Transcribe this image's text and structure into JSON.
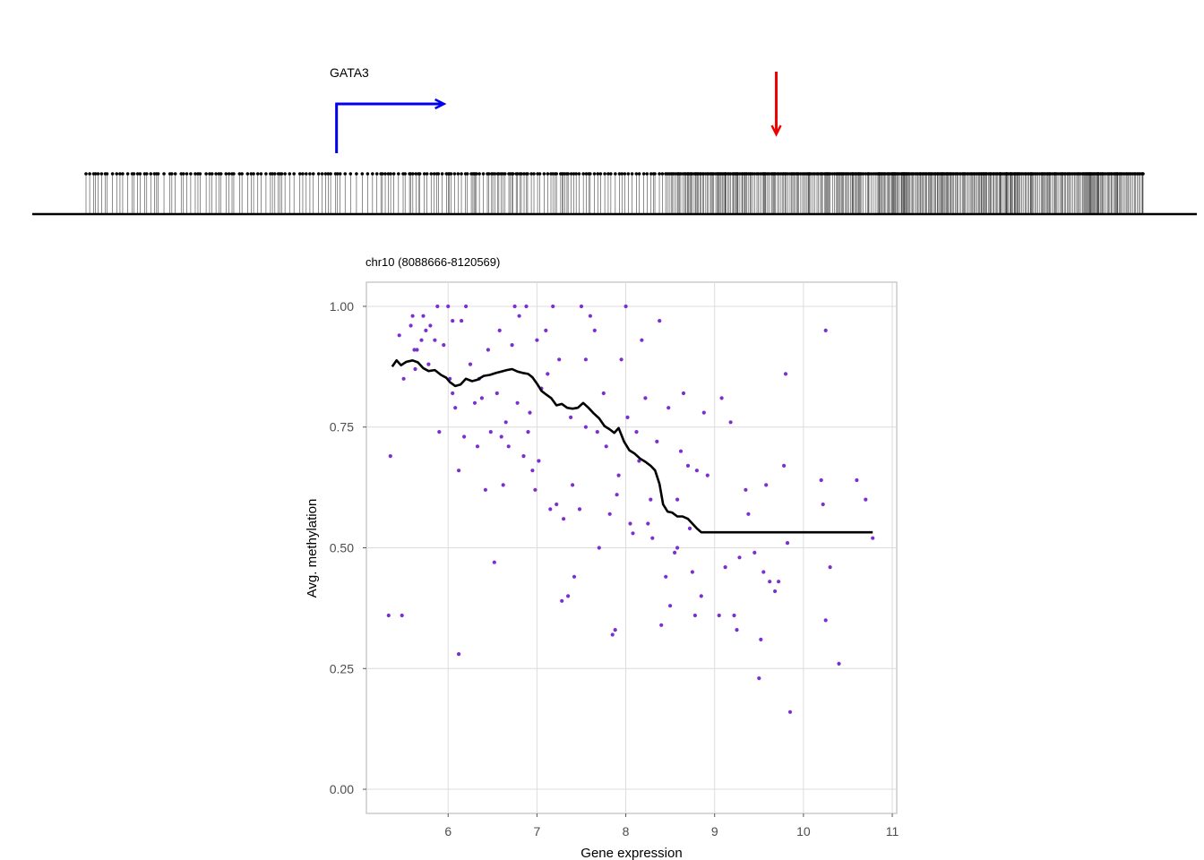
{
  "track": {
    "gene_label": "GATA3",
    "colors": {
      "gene_arrow": "#0000ee",
      "marker_arrow": "#ee0000",
      "cpg": "#000000"
    },
    "tss_fraction": 0.237,
    "marker_fraction": 0.653,
    "cpg_cluster_fractions": [
      [
        0.0,
        0.3
      ],
      [
        0.3,
        0.55
      ],
      [
        0.55,
        0.75
      ],
      [
        0.75,
        1.0
      ]
    ]
  },
  "chart_data": {
    "type": "scatter",
    "title": "chr10 (8088666-8120569)",
    "xlabel": "Gene expression",
    "ylabel": "Avg. methylation",
    "xlim": [
      5.08,
      11.05
    ],
    "ylim": [
      -0.05,
      1.05
    ],
    "xticks": [
      "6",
      "7",
      "8",
      "9",
      "10",
      "11"
    ],
    "yticks": [
      "0.00",
      "0.25",
      "0.50",
      "0.75",
      "1.00"
    ],
    "grid": true,
    "point_color": "#7b2fcf",
    "line_color": "#000000",
    "points": [
      [
        5.35,
        0.69
      ],
      [
        5.33,
        0.36
      ],
      [
        5.48,
        0.36
      ],
      [
        5.45,
        0.94
      ],
      [
        5.5,
        0.85
      ],
      [
        5.58,
        0.96
      ],
      [
        5.6,
        0.98
      ],
      [
        5.63,
        0.87
      ],
      [
        5.65,
        0.91
      ],
      [
        5.7,
        0.93
      ],
      [
        5.75,
        0.95
      ],
      [
        5.78,
        0.88
      ],
      [
        5.8,
        0.96
      ],
      [
        5.85,
        0.93
      ],
      [
        5.88,
        1.0
      ],
      [
        5.9,
        0.74
      ],
      [
        5.95,
        0.92
      ],
      [
        6.0,
        1.0
      ],
      [
        6.02,
        0.85
      ],
      [
        6.05,
        0.82
      ],
      [
        6.08,
        0.79
      ],
      [
        6.12,
        0.66
      ],
      [
        6.12,
        0.28
      ],
      [
        6.15,
        0.97
      ],
      [
        6.18,
        0.73
      ],
      [
        6.2,
        1.0
      ],
      [
        6.25,
        0.88
      ],
      [
        6.3,
        0.8
      ],
      [
        6.33,
        0.71
      ],
      [
        6.38,
        0.81
      ],
      [
        6.42,
        0.62
      ],
      [
        6.45,
        0.91
      ],
      [
        6.48,
        0.74
      ],
      [
        6.52,
        0.47
      ],
      [
        6.55,
        0.82
      ],
      [
        6.58,
        0.95
      ],
      [
        6.62,
        0.63
      ],
      [
        6.65,
        0.76
      ],
      [
        6.68,
        0.71
      ],
      [
        6.72,
        0.92
      ],
      [
        6.75,
        1.0
      ],
      [
        6.78,
        0.8
      ],
      [
        6.8,
        0.98
      ],
      [
        6.85,
        0.69
      ],
      [
        6.88,
        1.0
      ],
      [
        6.9,
        0.74
      ],
      [
        6.95,
        0.66
      ],
      [
        6.98,
        0.62
      ],
      [
        7.0,
        0.93
      ],
      [
        7.02,
        0.68
      ],
      [
        7.05,
        0.83
      ],
      [
        7.1,
        0.95
      ],
      [
        7.15,
        0.58
      ],
      [
        7.18,
        1.0
      ],
      [
        7.22,
        0.59
      ],
      [
        7.25,
        0.89
      ],
      [
        7.28,
        0.39
      ],
      [
        7.3,
        0.56
      ],
      [
        7.35,
        0.4
      ],
      [
        7.38,
        0.77
      ],
      [
        7.42,
        0.44
      ],
      [
        7.48,
        0.58
      ],
      [
        7.5,
        1.0
      ],
      [
        7.55,
        0.75
      ],
      [
        7.6,
        0.98
      ],
      [
        7.65,
        0.95
      ],
      [
        7.68,
        0.74
      ],
      [
        7.7,
        0.5
      ],
      [
        7.75,
        0.82
      ],
      [
        7.78,
        0.71
      ],
      [
        7.82,
        0.57
      ],
      [
        7.85,
        0.32
      ],
      [
        7.88,
        0.33
      ],
      [
        7.9,
        0.61
      ],
      [
        7.95,
        0.89
      ],
      [
        8.0,
        1.0
      ],
      [
        8.02,
        0.77
      ],
      [
        8.05,
        0.55
      ],
      [
        8.08,
        0.53
      ],
      [
        8.12,
        0.74
      ],
      [
        8.18,
        0.93
      ],
      [
        8.22,
        0.81
      ],
      [
        8.25,
        0.55
      ],
      [
        8.28,
        0.6
      ],
      [
        8.3,
        0.52
      ],
      [
        8.35,
        0.72
      ],
      [
        8.38,
        0.97
      ],
      [
        8.4,
        0.34
      ],
      [
        8.45,
        0.44
      ],
      [
        8.5,
        0.38
      ],
      [
        8.55,
        0.49
      ],
      [
        8.58,
        0.6
      ],
      [
        8.62,
        0.7
      ],
      [
        8.65,
        0.82
      ],
      [
        8.7,
        0.67
      ],
      [
        8.75,
        0.45
      ],
      [
        8.78,
        0.36
      ],
      [
        8.8,
        0.66
      ],
      [
        8.85,
        0.4
      ],
      [
        8.88,
        0.78
      ],
      [
        8.92,
        0.65
      ],
      [
        9.05,
        0.36
      ],
      [
        9.08,
        0.81
      ],
      [
        9.12,
        0.46
      ],
      [
        9.18,
        0.76
      ],
      [
        9.22,
        0.36
      ],
      [
        9.28,
        0.48
      ],
      [
        9.35,
        0.62
      ],
      [
        9.38,
        0.57
      ],
      [
        9.45,
        0.49
      ],
      [
        9.5,
        0.23
      ],
      [
        9.55,
        0.45
      ],
      [
        9.58,
        0.63
      ],
      [
        9.62,
        0.43
      ],
      [
        9.68,
        0.41
      ],
      [
        9.72,
        0.43
      ],
      [
        9.78,
        0.67
      ],
      [
        9.82,
        0.51
      ],
      [
        9.85,
        0.16
      ],
      [
        10.2,
        0.64
      ],
      [
        10.22,
        0.59
      ],
      [
        10.25,
        0.35
      ],
      [
        10.25,
        0.95
      ],
      [
        10.3,
        0.46
      ],
      [
        10.4,
        0.26
      ],
      [
        10.6,
        0.64
      ],
      [
        10.7,
        0.6
      ],
      [
        10.78,
        0.52
      ],
      [
        9.8,
        0.86
      ],
      [
        9.52,
        0.31
      ],
      [
        9.25,
        0.33
      ],
      [
        8.72,
        0.54
      ],
      [
        8.58,
        0.5
      ],
      [
        8.48,
        0.79
      ],
      [
        8.15,
        0.68
      ],
      [
        7.92,
        0.65
      ],
      [
        7.55,
        0.89
      ],
      [
        7.4,
        0.63
      ],
      [
        7.12,
        0.86
      ],
      [
        6.92,
        0.78
      ],
      [
        6.6,
        0.73
      ],
      [
        6.35,
        0.85
      ],
      [
        6.05,
        0.97
      ],
      [
        5.72,
        0.98
      ],
      [
        5.62,
        0.91
      ]
    ],
    "smooth_line": [
      [
        5.37,
        0.875
      ],
      [
        5.42,
        0.888
      ],
      [
        5.47,
        0.878
      ],
      [
        5.53,
        0.885
      ],
      [
        5.6,
        0.888
      ],
      [
        5.66,
        0.884
      ],
      [
        5.72,
        0.872
      ],
      [
        5.78,
        0.866
      ],
      [
        5.85,
        0.868
      ],
      [
        5.92,
        0.858
      ],
      [
        5.98,
        0.852
      ],
      [
        6.02,
        0.843
      ],
      [
        6.08,
        0.835
      ],
      [
        6.14,
        0.838
      ],
      [
        6.2,
        0.85
      ],
      [
        6.27,
        0.845
      ],
      [
        6.33,
        0.848
      ],
      [
        6.4,
        0.856
      ],
      [
        6.47,
        0.858
      ],
      [
        6.54,
        0.862
      ],
      [
        6.6,
        0.865
      ],
      [
        6.66,
        0.868
      ],
      [
        6.72,
        0.87
      ],
      [
        6.78,
        0.865
      ],
      [
        6.84,
        0.862
      ],
      [
        6.9,
        0.86
      ],
      [
        6.95,
        0.853
      ],
      [
        7.0,
        0.84
      ],
      [
        7.05,
        0.825
      ],
      [
        7.1,
        0.818
      ],
      [
        7.16,
        0.81
      ],
      [
        7.22,
        0.795
      ],
      [
        7.28,
        0.798
      ],
      [
        7.34,
        0.79
      ],
      [
        7.4,
        0.788
      ],
      [
        7.46,
        0.79
      ],
      [
        7.52,
        0.8
      ],
      [
        7.58,
        0.79
      ],
      [
        7.64,
        0.778
      ],
      [
        7.7,
        0.768
      ],
      [
        7.76,
        0.752
      ],
      [
        7.82,
        0.745
      ],
      [
        7.87,
        0.738
      ],
      [
        7.92,
        0.748
      ],
      [
        7.98,
        0.72
      ],
      [
        8.04,
        0.702
      ],
      [
        8.1,
        0.695
      ],
      [
        8.16,
        0.685
      ],
      [
        8.22,
        0.678
      ],
      [
        8.28,
        0.67
      ],
      [
        8.33,
        0.66
      ],
      [
        8.38,
        0.632
      ],
      [
        8.42,
        0.59
      ],
      [
        8.47,
        0.575
      ],
      [
        8.52,
        0.573
      ],
      [
        8.58,
        0.565
      ],
      [
        8.64,
        0.565
      ],
      [
        8.7,
        0.56
      ],
      [
        8.75,
        0.55
      ],
      [
        8.8,
        0.54
      ],
      [
        8.85,
        0.532
      ],
      [
        9.5,
        0.532
      ],
      [
        10.2,
        0.532
      ],
      [
        10.78,
        0.532
      ]
    ]
  }
}
